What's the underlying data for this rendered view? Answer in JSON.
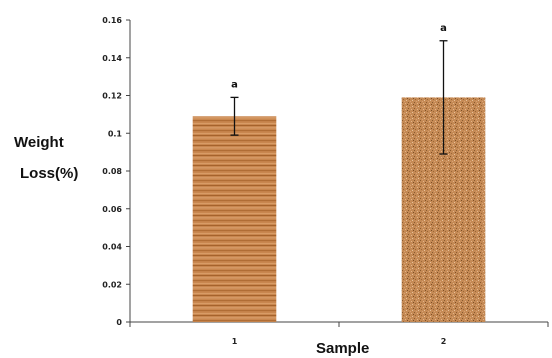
{
  "chart_data": {
    "type": "bar",
    "categories": [
      "1",
      "2"
    ],
    "values": [
      0.109,
      0.119
    ],
    "errors": [
      0.01,
      0.03
    ],
    "significance": [
      "a",
      "a"
    ],
    "xlabel": "Sample",
    "ylabel_lines": [
      "Weight",
      "Loss(%)"
    ],
    "ylim": [
      0,
      0.16
    ],
    "yticks": [
      "0",
      "0.02",
      "0.04",
      "0.06",
      "0.08",
      "0.1",
      "0.12",
      "0.14",
      "0.16"
    ],
    "grid": false,
    "legend": "none"
  }
}
